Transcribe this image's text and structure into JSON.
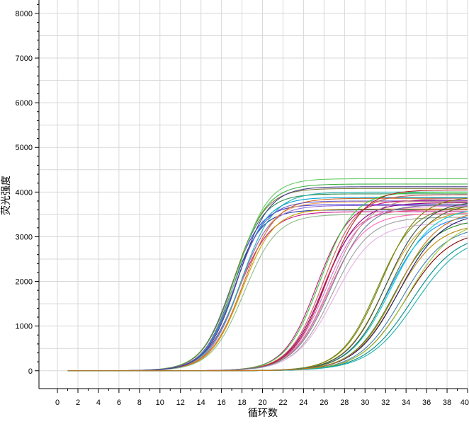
{
  "chart_data": {
    "type": "line",
    "title": "",
    "xlabel": "循环数",
    "ylabel": "荧光强度",
    "xlim": [
      -1.8,
      40
    ],
    "ylim": [
      -400,
      8300
    ],
    "x_ticks": [
      0,
      2,
      4,
      6,
      8,
      10,
      12,
      14,
      16,
      18,
      20,
      22,
      24,
      26,
      28,
      30,
      32,
      34,
      36,
      38,
      40
    ],
    "y_ticks": [
      0,
      1000,
      2000,
      3000,
      4000,
      5000,
      6000,
      7000,
      8000
    ],
    "grid": true,
    "legend": "none",
    "x_start": 1,
    "x_end": 40,
    "baseline": 0,
    "curve_groups": [
      {
        "name_hint": "group-1",
        "curves": [
          {
            "ct": 16.9,
            "plateau": 3720,
            "slope": 1.45,
            "color": "#4B3FD0"
          },
          {
            "ct": 17.1,
            "plateau": 3960,
            "slope": 1.5,
            "color": "#2E8B57"
          },
          {
            "ct": 17.3,
            "plateau": 4180,
            "slope": 1.55,
            "color": "#3CB043"
          },
          {
            "ct": 17.0,
            "plateau": 3600,
            "slope": 1.4,
            "color": "#1F3F9F"
          },
          {
            "ct": 17.4,
            "plateau": 3880,
            "slope": 1.5,
            "color": "#00A3D9"
          },
          {
            "ct": 17.2,
            "plateau": 4080,
            "slope": 1.5,
            "color": "#7E7E3A"
          },
          {
            "ct": 17.6,
            "plateau": 3560,
            "slope": 1.6,
            "color": "#C71585"
          },
          {
            "ct": 17.5,
            "plateau": 4300,
            "slope": 1.5,
            "color": "#66CC66"
          },
          {
            "ct": 17.8,
            "plateau": 3780,
            "slope": 1.55,
            "color": "#F4A460"
          },
          {
            "ct": 17.7,
            "plateau": 3700,
            "slope": 1.5,
            "color": "#9370DB"
          },
          {
            "ct": 17.9,
            "plateau": 4000,
            "slope": 1.6,
            "color": "#20B2AA"
          },
          {
            "ct": 18.0,
            "plateau": 3620,
            "slope": 1.55,
            "color": "#C8A000"
          },
          {
            "ct": 18.1,
            "plateau": 3860,
            "slope": 1.6,
            "color": "#D2691E"
          },
          {
            "ct": 17.3,
            "plateau": 3800,
            "slope": 1.5,
            "color": "#6A5ACD"
          },
          {
            "ct": 18.2,
            "plateau": 3500,
            "slope": 1.6,
            "color": "#8FBC8F"
          },
          {
            "ct": 17.6,
            "plateau": 4120,
            "slope": 1.5,
            "color": "#483D8B"
          }
        ]
      },
      {
        "name_hint": "group-2",
        "curves": [
          {
            "ct": 25.3,
            "plateau": 3820,
            "slope": 1.6,
            "color": "#C71585"
          },
          {
            "ct": 25.6,
            "plateau": 4000,
            "slope": 1.65,
            "color": "#32CD32"
          },
          {
            "ct": 25.8,
            "plateau": 3600,
            "slope": 1.6,
            "color": "#E85C8A"
          },
          {
            "ct": 26.0,
            "plateau": 3760,
            "slope": 1.7,
            "color": "#8B008B"
          },
          {
            "ct": 26.2,
            "plateau": 3680,
            "slope": 1.7,
            "color": "#DA70D6"
          },
          {
            "ct": 25.9,
            "plateau": 3940,
            "slope": 1.65,
            "color": "#CD5C5C"
          },
          {
            "ct": 26.4,
            "plateau": 3520,
            "slope": 1.75,
            "color": "#FF69B4"
          },
          {
            "ct": 26.6,
            "plateau": 3860,
            "slope": 1.8,
            "color": "#BC8F8F"
          },
          {
            "ct": 26.8,
            "plateau": 3440,
            "slope": 1.8,
            "color": "#A0A0A0"
          },
          {
            "ct": 27.0,
            "plateau": 3300,
            "slope": 1.9,
            "color": "#E6B0E6"
          },
          {
            "ct": 26.3,
            "plateau": 4050,
            "slope": 1.7,
            "color": "#B22222"
          },
          {
            "ct": 26.7,
            "plateau": 3720,
            "slope": 1.8,
            "color": "#708090"
          }
        ]
      },
      {
        "name_hint": "group-3",
        "curves": [
          {
            "ct": 31.2,
            "plateau": 3700,
            "slope": 1.8,
            "color": "#6B8E23"
          },
          {
            "ct": 31.5,
            "plateau": 3900,
            "slope": 1.85,
            "color": "#808000"
          },
          {
            "ct": 31.8,
            "plateau": 3600,
            "slope": 1.9,
            "color": "#DAA520"
          },
          {
            "ct": 32.0,
            "plateau": 3800,
            "slope": 1.9,
            "color": "#2F4F4F"
          },
          {
            "ct": 32.2,
            "plateau": 3500,
            "slope": 1.95,
            "color": "#1E90FF"
          },
          {
            "ct": 32.5,
            "plateau": 3650,
            "slope": 2.0,
            "color": "#00CED1"
          },
          {
            "ct": 32.8,
            "plateau": 3400,
            "slope": 2.0,
            "color": "#228B22"
          },
          {
            "ct": 33.0,
            "plateau": 3300,
            "slope": 2.05,
            "color": "#B8860B"
          },
          {
            "ct": 33.3,
            "plateau": 3550,
            "slope": 2.1,
            "color": "#191970"
          },
          {
            "ct": 33.6,
            "plateau": 3250,
            "slope": 2.1,
            "color": "#4682B4"
          },
          {
            "ct": 33.9,
            "plateau": 3150,
            "slope": 2.15,
            "color": "#800000"
          },
          {
            "ct": 34.2,
            "plateau": 3400,
            "slope": 2.2,
            "color": "#9ACD32"
          },
          {
            "ct": 34.5,
            "plateau": 3100,
            "slope": 2.25,
            "color": "#008B8B"
          },
          {
            "ct": 34.9,
            "plateau": 3050,
            "slope": 2.3,
            "color": "#20B2AA"
          },
          {
            "ct": 32.4,
            "plateau": 3750,
            "slope": 1.95,
            "color": "#556B2F"
          },
          {
            "ct": 33.1,
            "plateau": 3600,
            "slope": 2.05,
            "color": "#CC7722"
          }
        ]
      }
    ]
  }
}
